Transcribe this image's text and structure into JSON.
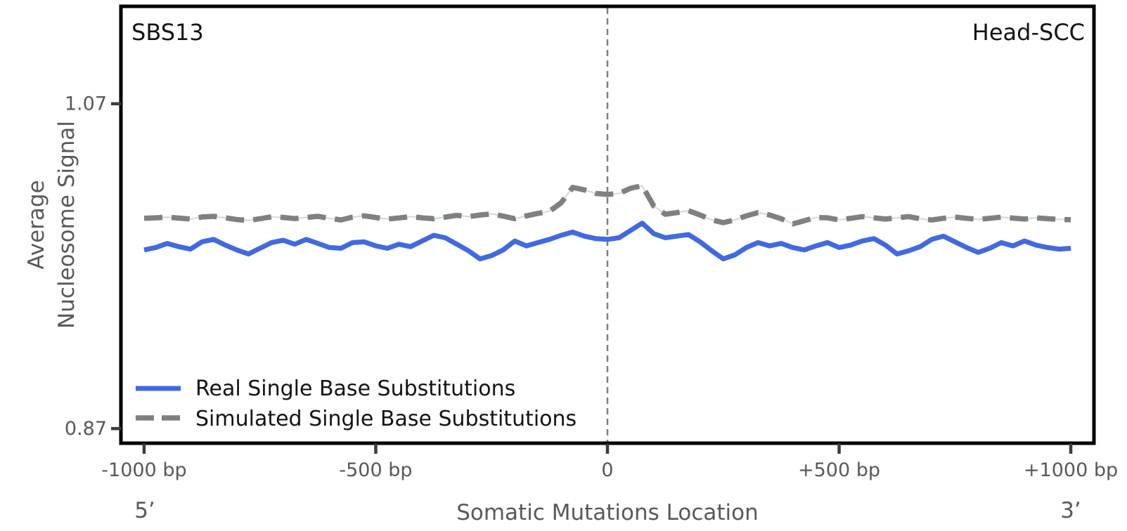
{
  "colors": {
    "background": "#ffffff",
    "spine": "#000000",
    "center_line": "#7f7f7f",
    "tick_text": "#595959",
    "annotation_text": "#141414"
  },
  "chart_data": {
    "type": "line",
    "annotations": {
      "top_left": "SBS13",
      "top_right": "Head-SCC"
    },
    "xlabel": "Somatic Mutations Location",
    "ylabel_lines": [
      "Average",
      "Nucleosome Signal"
    ],
    "x_strand_labels": {
      "left": "5’",
      "right": "3’"
    },
    "xlim": [
      -1050,
      1050
    ],
    "ylim": [
      0.861,
      1.13
    ],
    "grid": false,
    "legend_position": "lower-left",
    "vline_x": 0,
    "xticks": [
      {
        "value": -1000,
        "label": "-1000 bp"
      },
      {
        "value": -500,
        "label": "-500 bp"
      },
      {
        "value": 0,
        "label": "0"
      },
      {
        "value": 500,
        "label": "+500 bp"
      },
      {
        "value": 1000,
        "label": "+1000 bp"
      }
    ],
    "yticks": [
      {
        "value": 1.07,
        "label": "1.07"
      },
      {
        "value": 0.87,
        "label": "0.87"
      }
    ],
    "x": [
      -1000,
      -975,
      -950,
      -925,
      -900,
      -875,
      -850,
      -825,
      -800,
      -775,
      -750,
      -725,
      -700,
      -675,
      -650,
      -625,
      -600,
      -575,
      -550,
      -525,
      -500,
      -475,
      -450,
      -425,
      -400,
      -375,
      -350,
      -325,
      -300,
      -275,
      -250,
      -225,
      -200,
      -175,
      -150,
      -125,
      -100,
      -75,
      -50,
      -25,
      0,
      25,
      50,
      75,
      100,
      125,
      150,
      175,
      200,
      225,
      250,
      275,
      300,
      325,
      350,
      375,
      400,
      425,
      450,
      475,
      500,
      525,
      550,
      575,
      600,
      625,
      650,
      675,
      700,
      725,
      750,
      775,
      800,
      825,
      850,
      875,
      900,
      925,
      950,
      975,
      1000
    ],
    "series": [
      {
        "name": "Real Single Base Substitutions",
        "color": "#4169e1",
        "style": "solid",
        "values": [
          0.98,
          0.9815,
          0.984,
          0.982,
          0.9805,
          0.985,
          0.9865,
          0.983,
          0.98,
          0.9775,
          0.981,
          0.9845,
          0.986,
          0.9835,
          0.9865,
          0.984,
          0.9815,
          0.981,
          0.9845,
          0.985,
          0.9825,
          0.981,
          0.9835,
          0.982,
          0.9855,
          0.989,
          0.9875,
          0.9835,
          0.9795,
          0.9745,
          0.9765,
          0.98,
          0.9855,
          0.9825,
          0.9845,
          0.9865,
          0.989,
          0.991,
          0.9885,
          0.987,
          0.9865,
          0.9875,
          0.992,
          0.9965,
          0.99,
          0.9875,
          0.9885,
          0.9895,
          0.985,
          0.9795,
          0.9745,
          0.977,
          0.9815,
          0.9845,
          0.9825,
          0.984,
          0.9815,
          0.98,
          0.9825,
          0.9845,
          0.9815,
          0.983,
          0.9855,
          0.987,
          0.983,
          0.9775,
          0.9795,
          0.982,
          0.9865,
          0.9885,
          0.985,
          0.9815,
          0.9785,
          0.981,
          0.9845,
          0.9825,
          0.9855,
          0.983,
          0.9815,
          0.9805,
          0.981
        ]
      },
      {
        "name": "Simulated Single Base Substitutions",
        "color": "#808080",
        "style": "dashed",
        "underlay_color": "#c9dee8",
        "values": [
          0.9995,
          0.9998,
          1.0002,
          0.9996,
          0.999,
          1.0003,
          1.0007,
          0.9998,
          0.9987,
          0.9982,
          0.9992,
          1.0004,
          1.0,
          0.9993,
          1.0,
          1.0007,
          0.9995,
          0.9985,
          1.0002,
          1.001,
          1.0,
          0.999,
          0.9997,
          1.0005,
          0.9998,
          0.9992,
          1.0002,
          1.0013,
          1.0005,
          1.0015,
          1.0022,
          1.0008,
          0.9992,
          1.001,
          1.0025,
          1.0038,
          1.009,
          1.0185,
          1.017,
          1.0148,
          1.0142,
          1.0148,
          1.018,
          1.0195,
          1.007,
          1.002,
          1.003,
          1.0042,
          1.0015,
          0.9985,
          0.9968,
          0.9985,
          1.001,
          1.003,
          1.0015,
          0.9992,
          0.996,
          0.998,
          1.0,
          0.9998,
          0.9985,
          0.9995,
          1.0005,
          0.9998,
          0.999,
          0.9998,
          1.0005,
          0.9992,
          0.9985,
          0.9995,
          1.0002,
          0.9995,
          0.9988,
          0.9995,
          1.0002,
          0.9996,
          0.999,
          0.9998,
          0.9992,
          0.9988,
          0.9986
        ]
      }
    ]
  }
}
